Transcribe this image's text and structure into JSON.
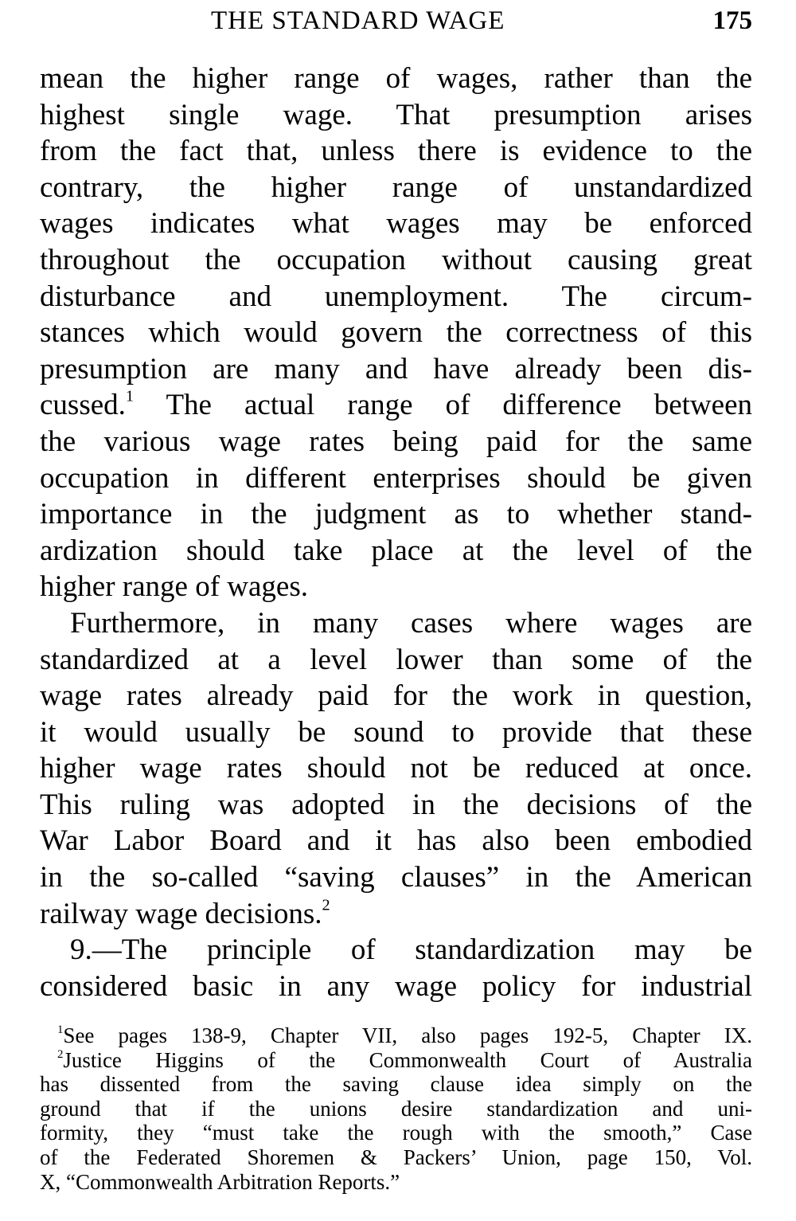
{
  "header": {
    "title": "THE STANDARD WAGE",
    "page_number": "175"
  },
  "body_lines": [
    {
      "text": "mean the higher range of wages, rather than the"
    },
    {
      "text": "highest single wage. That presumption arises"
    },
    {
      "text": "from the fact that, unless there is evidence to the"
    },
    {
      "text": "contrary, the higher range of unstandardized"
    },
    {
      "text": "wages indicates what wages may be enforced"
    },
    {
      "text": "throughout the occupation without causing great"
    },
    {
      "text": "disturbance and unemployment. The circum-"
    },
    {
      "text": "stances which would govern the correctness of this"
    },
    {
      "text": "presumption are many and have already been dis-"
    },
    {
      "text": "cussed.",
      "sup": "1",
      "after": " The actual range of difference between"
    },
    {
      "text": "the various wage rates being paid for the same"
    },
    {
      "text": "occupation in different enterprises should be given"
    },
    {
      "text": "importance in the judgment as to whether stand-"
    },
    {
      "text": "ardization should take place at the level of the"
    },
    {
      "text": "higher range of wages.",
      "last": true
    },
    {
      "text": "Furthermore, in many cases where wages are",
      "indent": true
    },
    {
      "text": "standardized at a level lower than some of the"
    },
    {
      "text": "wage rates already paid for the work in question,"
    },
    {
      "text": "it would usually be sound to provide that these"
    },
    {
      "text": "higher wage rates should not be reduced at once."
    },
    {
      "text": "This ruling was adopted in the decisions of the"
    },
    {
      "text": "War Labor Board and it has also been embodied"
    },
    {
      "text": "in the so-called “saving clauses” in the American"
    },
    {
      "text": "railway wage decisions.",
      "sup": "2",
      "last": true
    },
    {
      "text": "9.—The principle of standardization may be",
      "indent": true
    },
    {
      "text": "considered basic in any wage policy for industrial"
    }
  ],
  "footnote_lines": [
    {
      "sup": "1",
      "text": "See pages 138-9, Chapter VII, also pages 192-5, Chapter IX.",
      "indent": true
    },
    {
      "sup": "2",
      "text": "Justice Higgins of the Commonwealth Court of Australia",
      "indent": true
    },
    {
      "text": "has dissented from the saving clause idea simply on the"
    },
    {
      "text": "ground that if the unions desire standardization and uni-"
    },
    {
      "text": "formity, they “must take the rough with the smooth,” Case"
    },
    {
      "text": "of the Federated Shoremen & Packers’ Union, page 150, Vol."
    },
    {
      "text": "X, “Commonwealth Arbitration Reports.”",
      "last": true
    }
  ]
}
